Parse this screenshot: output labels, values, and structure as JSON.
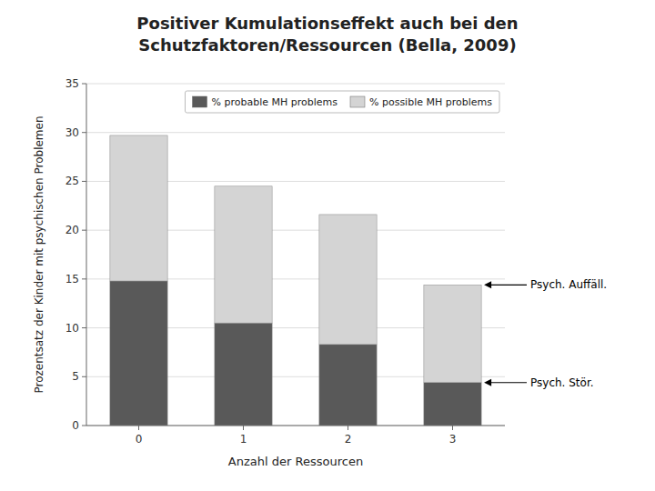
{
  "chart_data": {
    "type": "bar",
    "stacked": true,
    "title": [
      "Positiver Kumulationseffekt auch bei den",
      "Schutzfaktoren/Ressourcen (Bella, 2009)"
    ],
    "xlabel": "Anzahl der Ressourcen",
    "ylabel": "Prozentsatz der Kinder mit psychischen Problemen",
    "categories": [
      "0",
      "1",
      "2",
      "3"
    ],
    "series": [
      {
        "name": "% probable MH problems",
        "color": "#595959",
        "values": [
          14.8,
          10.5,
          8.3,
          4.4
        ]
      },
      {
        "name": "% possible MH problems",
        "color": "#d4d4d4",
        "values": [
          14.9,
          14.0,
          13.3,
          10.0
        ]
      }
    ],
    "ylim": [
      0,
      35
    ],
    "yticks": [
      0,
      5,
      10,
      15,
      20,
      25,
      30,
      35
    ],
    "grid": true,
    "legend": "upper right",
    "annotations": [
      {
        "text": "Psych. Auffäll.",
        "series": "% possible MH problems",
        "category": "3"
      },
      {
        "text": "Psych. Stör.",
        "series": "% probable MH problems",
        "category": "3"
      }
    ]
  }
}
